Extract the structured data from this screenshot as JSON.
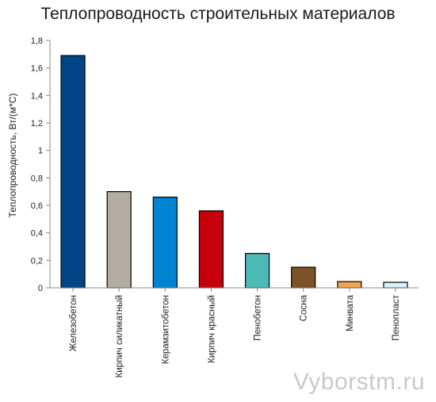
{
  "chart_data": {
    "type": "bar",
    "title": "Теплопроводность строительных материалов",
    "ylabel": "Теплопроводность, Вт/(м*С)",
    "xlabel": "",
    "ylim": [
      0,
      1.8
    ],
    "y_ticks": [
      "0",
      "0,2",
      "0,4",
      "0,6",
      "0,8",
      "1",
      "1,2",
      "1,4",
      "1,6",
      "1,8"
    ],
    "grid": false,
    "categories": [
      "Железобетон",
      "Кирпич силикатный",
      "Керамзитобетон",
      "Кирпич красный",
      "Пенобетон",
      "Сосна",
      "Минвата",
      "Пенопласт"
    ],
    "values": [
      1.69,
      0.7,
      0.66,
      0.56,
      0.25,
      0.15,
      0.045,
      0.04
    ],
    "colors": [
      "#004586",
      "#b3aca3",
      "#0084d1",
      "#c5000b",
      "#4bb9b5",
      "#7e5227",
      "#f0a54a",
      "#d6f2fb"
    ]
  },
  "watermark": "Vyborstm.ru"
}
